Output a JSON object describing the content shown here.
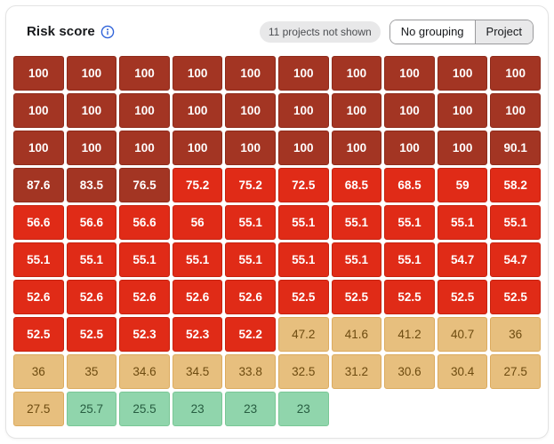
{
  "header": {
    "title": "Risk score",
    "badge": "11 projects not shown",
    "toggle": {
      "options": [
        {
          "label": "No grouping",
          "selected": false
        },
        {
          "label": "Project",
          "selected": true
        }
      ]
    }
  },
  "palette": {
    "dark_red": {
      "bg": "#a33523",
      "border": "#8e2b1b",
      "text": "#ffffff"
    },
    "red": {
      "bg": "#e02b17",
      "border": "#c5220f",
      "text": "#ffffff"
    },
    "amber": {
      "bg": "#e7bf7e",
      "border": "#dcab5f",
      "text": "#6d4b10"
    },
    "green": {
      "bg": "#90d5ac",
      "border": "#79c795",
      "text": "#275d41"
    }
  },
  "thresholds": [
    {
      "min": 76,
      "level": "dark_red"
    },
    {
      "min": 50,
      "level": "red"
    },
    {
      "min": 26,
      "level": "amber"
    },
    {
      "min": 0,
      "level": "green"
    }
  ],
  "chart_data": {
    "type": "heatmap",
    "title": "Risk score",
    "legend_note": "tile color encodes risk severity: dark red (>=76), red (50-75.9), amber (26-49.9), green (<26)",
    "grid_columns": 10,
    "rows": [
      [
        100,
        100,
        100,
        100,
        100,
        100,
        100,
        100,
        100,
        100
      ],
      [
        100,
        100,
        100,
        100,
        100,
        100,
        100,
        100,
        100,
        100
      ],
      [
        100,
        100,
        100,
        100,
        100,
        100,
        100,
        100,
        100,
        90.1
      ],
      [
        87.6,
        83.5,
        76.5,
        75.2,
        75.2,
        72.5,
        68.5,
        68.5,
        59,
        58.2
      ],
      [
        56.6,
        56.6,
        56.6,
        56,
        55.1,
        55.1,
        55.1,
        55.1,
        55.1,
        55.1
      ],
      [
        55.1,
        55.1,
        55.1,
        55.1,
        55.1,
        55.1,
        55.1,
        55.1,
        54.7,
        54.7
      ],
      [
        52.6,
        52.6,
        52.6,
        52.6,
        52.6,
        52.5,
        52.5,
        52.5,
        52.5,
        52.5
      ],
      [
        52.5,
        52.5,
        52.3,
        52.3,
        52.2,
        47.2,
        41.6,
        41.2,
        40.7,
        36
      ],
      [
        36,
        35,
        34.6,
        34.5,
        33.8,
        32.5,
        31.2,
        30.6,
        30.4,
        27.5
      ],
      [
        27.5,
        25.7,
        25.5,
        23,
        23,
        23
      ]
    ]
  }
}
